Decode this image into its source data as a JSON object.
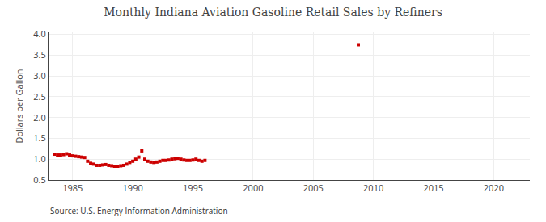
{
  "chart_data": {
    "type": "scatter",
    "title": "Monthly Indiana Aviation Gasoline Retail Sales by Refiners",
    "ylabel": "Dollars per Gallon",
    "annotations": [
      "Source: U.S. Energy Information Administration"
    ],
    "x": [
      1983.5,
      1983.75,
      1984.0,
      1984.25,
      1984.5,
      1984.75,
      1985.0,
      1985.25,
      1985.5,
      1985.75,
      1986.0,
      1986.25,
      1986.5,
      1986.75,
      1987.0,
      1987.25,
      1987.5,
      1987.75,
      1988.0,
      1988.25,
      1988.5,
      1988.75,
      1989.0,
      1989.25,
      1989.5,
      1989.75,
      1990.0,
      1990.25,
      1990.5,
      1990.75,
      1991.0,
      1991.25,
      1991.5,
      1991.75,
      1992.0,
      1992.25,
      1992.5,
      1992.75,
      1993.0,
      1993.25,
      1993.5,
      1993.75,
      1994.0,
      1994.25,
      1994.5,
      1994.75,
      1995.0,
      1995.25,
      1995.5,
      1995.75,
      1996.0,
      2008.75
    ],
    "values": [
      1.12,
      1.1,
      1.1,
      1.11,
      1.13,
      1.1,
      1.08,
      1.07,
      1.06,
      1.05,
      1.04,
      0.95,
      0.9,
      0.88,
      0.85,
      0.85,
      0.86,
      0.87,
      0.85,
      0.84,
      0.83,
      0.83,
      0.84,
      0.85,
      0.88,
      0.92,
      0.95,
      1.0,
      1.05,
      1.2,
      1.0,
      0.95,
      0.93,
      0.92,
      0.93,
      0.95,
      0.97,
      0.97,
      0.98,
      1.0,
      1.01,
      1.02,
      1.0,
      0.98,
      0.97,
      0.97,
      0.98,
      1.0,
      0.97,
      0.95,
      0.97,
      3.75
    ],
    "color": "#cc0000",
    "marker": "square",
    "xlim": [
      1983,
      2023
    ],
    "xticks": [
      1985,
      1990,
      1995,
      2000,
      2005,
      2010,
      2015,
      2020
    ],
    "ylim": [
      0.5,
      4.05
    ],
    "yticks": [
      0.5,
      {
        "value": 1.0,
        "label": "1.0"
      },
      1.5,
      {
        "value": 2.0,
        "label": "2.0"
      },
      2.5,
      {
        "value": 3.0,
        "label": "3.0"
      },
      3.5,
      {
        "value": 4.0,
        "label": "4.0"
      }
    ],
    "grid": true
  }
}
